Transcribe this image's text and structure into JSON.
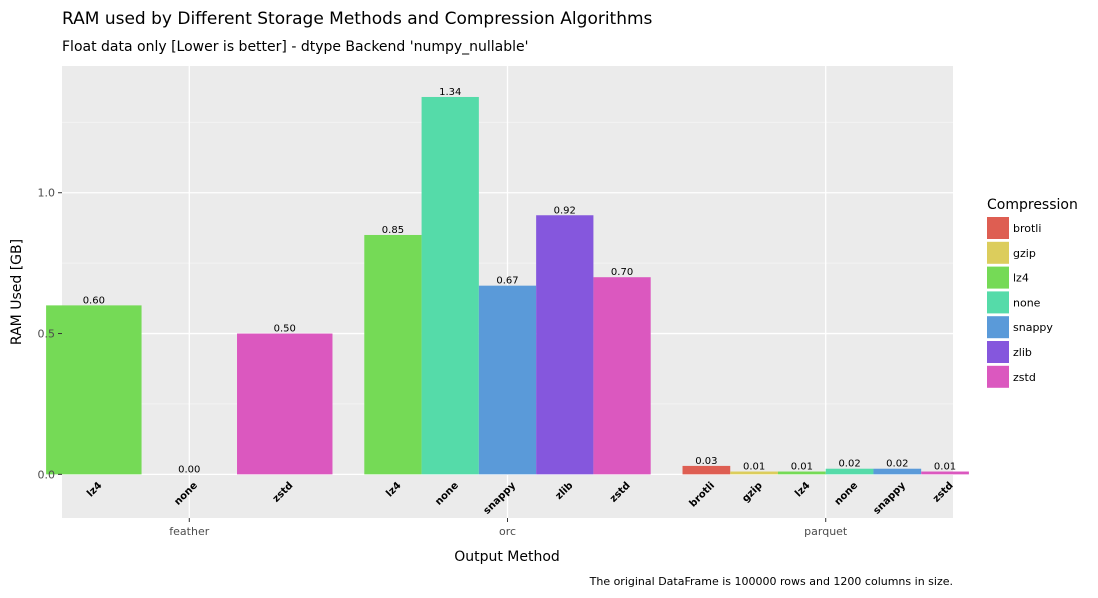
{
  "chart_data": {
    "type": "bar",
    "title": "RAM used by Different Storage Methods and Compression Algorithms",
    "subtitle": "Float data only [Lower is better] - dtype Backend 'numpy_nullable'",
    "xlabel": "Output Method",
    "ylabel": "RAM Used [GB]",
    "caption": "The original DataFrame is 100000 rows and 1200 columns in size.",
    "ylim": [
      -0.155,
      1.45
    ],
    "yticks": [
      0.0,
      0.5,
      1.0
    ],
    "ytick_labels": [
      "0.0",
      "0.5",
      "1.0"
    ],
    "grid": true,
    "legend": {
      "title": "Compression",
      "position": "right",
      "entries": [
        {
          "name": "brotli",
          "color": "#DE5E52"
        },
        {
          "name": "gzip",
          "color": "#DCCD5C"
        },
        {
          "name": "lz4",
          "color": "#75DA56"
        },
        {
          "name": "none",
          "color": "#55DBA9"
        },
        {
          "name": "snappy",
          "color": "#5A9AD9"
        },
        {
          "name": "zlib",
          "color": "#8557DD"
        },
        {
          "name": "zstd",
          "color": "#DB58BF"
        }
      ]
    },
    "groups": [
      {
        "name": "feather",
        "bars": [
          {
            "compression": "lz4",
            "value": 0.6,
            "label": "0.60"
          },
          {
            "compression": "none",
            "value": 0.0,
            "label": "0.00"
          },
          {
            "compression": "zstd",
            "value": 0.5,
            "label": "0.50"
          }
        ]
      },
      {
        "name": "orc",
        "bars": [
          {
            "compression": "lz4",
            "value": 0.85,
            "label": "0.85"
          },
          {
            "compression": "none",
            "value": 1.34,
            "label": "1.34"
          },
          {
            "compression": "snappy",
            "value": 0.67,
            "label": "0.67"
          },
          {
            "compression": "zlib",
            "value": 0.92,
            "label": "0.92"
          },
          {
            "compression": "zstd",
            "value": 0.7,
            "label": "0.70"
          }
        ]
      },
      {
        "name": "parquet",
        "bars": [
          {
            "compression": "brotli",
            "value": 0.03,
            "label": "0.03"
          },
          {
            "compression": "gzip",
            "value": 0.01,
            "label": "0.01"
          },
          {
            "compression": "lz4",
            "value": 0.01,
            "label": "0.01"
          },
          {
            "compression": "none",
            "value": 0.02,
            "label": "0.02"
          },
          {
            "compression": "snappy",
            "value": 0.02,
            "label": "0.02"
          },
          {
            "compression": "zstd",
            "value": 0.01,
            "label": "0.01"
          }
        ]
      }
    ]
  }
}
